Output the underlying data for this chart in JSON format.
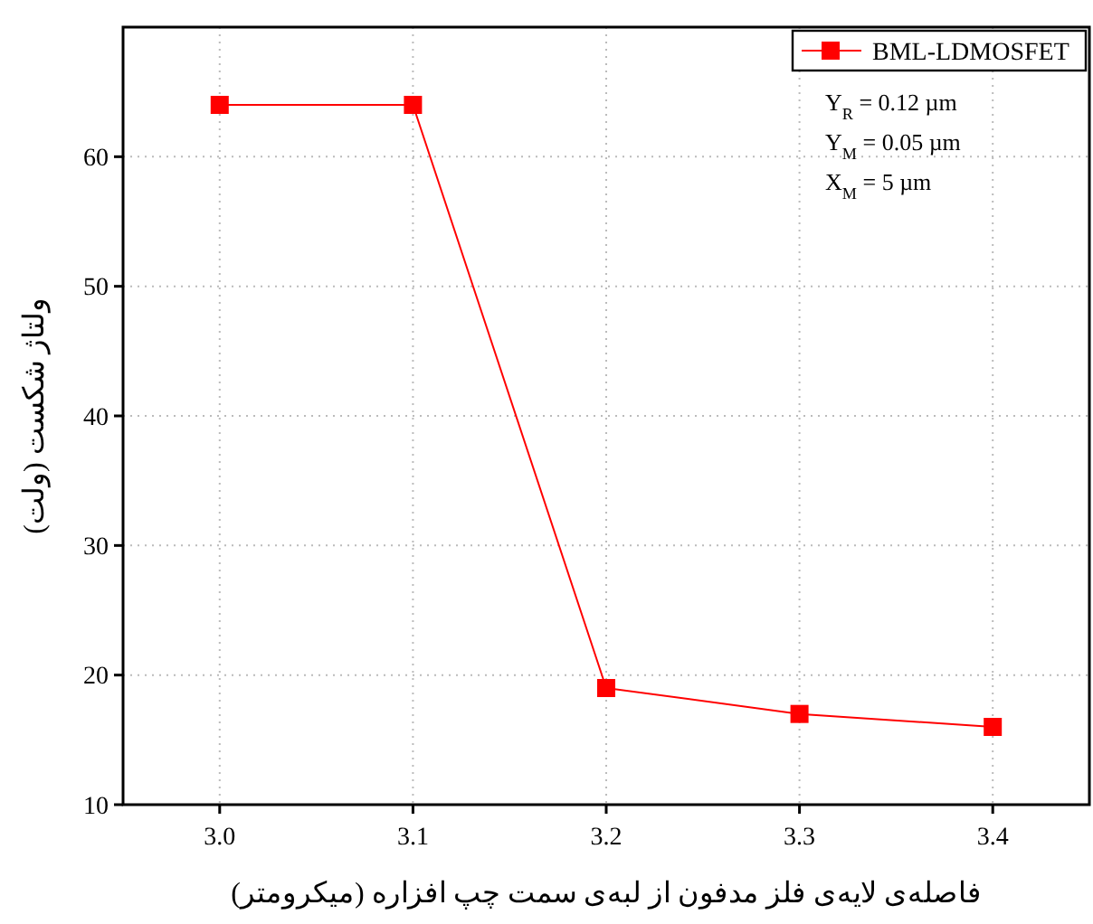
{
  "chart_data": {
    "type": "line",
    "xlabel": "فاصله‌ی لایه‌ی فلز مدفون از لبه‌ی سمت چپ افزاره (میکرومتر)",
    "ylabel": "ولتاژ شکست (ولت)",
    "x": [
      3.0,
      3.1,
      3.2,
      3.3,
      3.4
    ],
    "series": [
      {
        "name": "BML-LDMOSFET",
        "color": "#ff0000",
        "values": [
          64,
          64,
          19,
          17,
          16
        ]
      }
    ],
    "xlim": [
      2.95,
      3.45
    ],
    "xticks": [
      {
        "value": 3.0,
        "label": "3.0"
      },
      {
        "value": 3.1,
        "label": "3.1"
      },
      {
        "value": 3.2,
        "label": "3.2"
      },
      {
        "value": 3.3,
        "label": "3.3"
      },
      {
        "value": 3.4,
        "label": "3.4"
      }
    ],
    "ylim": [
      10,
      70
    ],
    "yticks": [
      10,
      20,
      30,
      40,
      50,
      60
    ],
    "annotations": [
      "Y$_{R}$ = 0.12 µm",
      "Y$_{M}$ = 0.05 µm",
      "X$_{M}$ = 5 µm"
    ],
    "marker": "square",
    "line_style": "solid",
    "legend": "top right",
    "grid": true
  }
}
